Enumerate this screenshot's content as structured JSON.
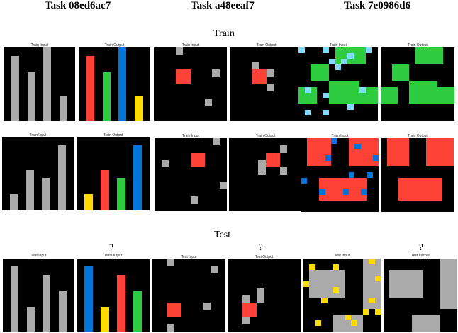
{
  "colors": {
    "background": "#000000",
    "gray": "#AAAAAA",
    "red": "#FF4136",
    "green": "#2ECC40",
    "blue": "#0074D9",
    "yellow": "#FFDC00",
    "lightblue": "#7FDBFF"
  },
  "tasks": [
    {
      "title": "Task 08ed6ac7"
    },
    {
      "title": "Task  a48eeaf7"
    },
    {
      "title": "Task 7e0986d6"
    }
  ],
  "sections": {
    "train": "Train",
    "test": "Test"
  },
  "labels": {
    "train_input": "Train Input",
    "train_output": "Train Output",
    "test_input": "Test Input",
    "test_output": "Test Output"
  },
  "unknown_mark": "?",
  "grids": [
    {
      "id": "t1-r1-in",
      "size": 9,
      "cells": [
        [
          1,
          1,
          1,
          8,
          "gray"
        ],
        [
          3,
          3,
          1,
          6,
          "gray"
        ],
        [
          5,
          0,
          1,
          9,
          "gray"
        ],
        [
          7,
          6,
          1,
          3,
          "gray"
        ]
      ]
    },
    {
      "id": "t1-r1-out",
      "size": 9,
      "cells": [
        [
          1,
          1,
          1,
          8,
          "red"
        ],
        [
          3,
          3,
          1,
          6,
          "green"
        ],
        [
          5,
          0,
          1,
          9,
          "blue"
        ],
        [
          7,
          6,
          1,
          3,
          "yellow"
        ]
      ]
    },
    {
      "id": "t1-r2-in",
      "size": 9,
      "cells": [
        [
          1,
          7,
          1,
          2,
          "gray"
        ],
        [
          3,
          4,
          1,
          5,
          "gray"
        ],
        [
          5,
          5,
          1,
          4,
          "gray"
        ],
        [
          7,
          1,
          1,
          8,
          "gray"
        ]
      ]
    },
    {
      "id": "t1-r2-out",
      "size": 9,
      "cells": [
        [
          1,
          7,
          1,
          2,
          "yellow"
        ],
        [
          3,
          4,
          1,
          5,
          "red"
        ],
        [
          5,
          5,
          1,
          4,
          "green"
        ],
        [
          7,
          1,
          1,
          8,
          "blue"
        ]
      ]
    },
    {
      "id": "t1-test-in",
      "size": 9,
      "cells": [
        [
          1,
          1,
          1,
          8,
          "gray"
        ],
        [
          3,
          6,
          1,
          3,
          "gray"
        ],
        [
          5,
          2,
          1,
          7,
          "gray"
        ],
        [
          7,
          4,
          1,
          5,
          "gray"
        ]
      ]
    },
    {
      "id": "t1-test-out",
      "size": 9,
      "cells": [
        [
          1,
          1,
          1,
          8,
          "blue"
        ],
        [
          3,
          6,
          1,
          3,
          "yellow"
        ],
        [
          5,
          2,
          1,
          7,
          "red"
        ],
        [
          7,
          4,
          1,
          5,
          "green"
        ]
      ]
    },
    {
      "id": "t2-r1-in",
      "size": 10,
      "cells": [
        [
          3,
          3,
          2,
          2,
          "red"
        ],
        [
          3,
          0,
          1,
          1,
          "gray"
        ],
        [
          8,
          3,
          1,
          1,
          "gray"
        ],
        [
          7,
          7,
          1,
          1,
          "gray"
        ]
      ]
    },
    {
      "id": "t2-r1-out",
      "size": 10,
      "cells": [
        [
          3,
          3,
          2,
          2,
          "red"
        ],
        [
          3,
          2,
          1,
          1,
          "gray"
        ],
        [
          5,
          3,
          1,
          1,
          "gray"
        ],
        [
          5,
          5,
          1,
          1,
          "gray"
        ]
      ]
    },
    {
      "id": "t2-r2-in",
      "size": 10,
      "cells": [
        [
          5,
          2,
          2,
          2,
          "red"
        ],
        [
          8,
          0,
          1,
          1,
          "gray"
        ],
        [
          1,
          3,
          1,
          1,
          "gray"
        ],
        [
          9,
          6,
          1,
          1,
          "gray"
        ],
        [
          5,
          8,
          1,
          1,
          "gray"
        ]
      ]
    },
    {
      "id": "t2-r2-out",
      "size": 10,
      "cells": [
        [
          5,
          2,
          2,
          2,
          "red"
        ],
        [
          7,
          1,
          1,
          1,
          "gray"
        ],
        [
          4,
          3,
          1,
          1,
          "gray"
        ],
        [
          4,
          4,
          1,
          1,
          "gray"
        ],
        [
          7,
          4,
          1,
          1,
          "gray"
        ]
      ]
    },
    {
      "id": "t2-test-in",
      "size": 10,
      "cells": [
        [
          2,
          6,
          2,
          2,
          "red"
        ],
        [
          2,
          0,
          1,
          1,
          "gray"
        ],
        [
          8,
          1,
          1,
          1,
          "gray"
        ],
        [
          7,
          6,
          1,
          1,
          "gray"
        ],
        [
          2,
          9,
          1,
          1,
          "gray"
        ]
      ]
    },
    {
      "id": "t2-test-out",
      "size": 10,
      "cells": [
        [
          2,
          6,
          2,
          2,
          "red"
        ],
        [
          2,
          5,
          1,
          1,
          "gray"
        ],
        [
          4,
          5,
          1,
          1,
          "gray"
        ],
        [
          4,
          4,
          1,
          1,
          "gray"
        ],
        [
          2,
          8,
          1,
          1,
          "gray"
        ]
      ]
    },
    {
      "id": "t3-r1-in",
      "size": 13,
      "cells": [
        [
          6,
          0,
          5,
          3,
          "green"
        ],
        [
          2,
          3,
          3,
          3,
          "green"
        ],
        [
          0,
          7,
          3,
          3,
          "green"
        ],
        [
          5,
          6,
          5,
          4,
          "green"
        ],
        [
          9,
          7,
          4,
          3,
          "green"
        ],
        [
          0,
          0,
          1,
          1,
          "lightblue"
        ],
        [
          4,
          0,
          1,
          1,
          "lightblue"
        ],
        [
          11,
          0,
          1,
          1,
          "lightblue"
        ],
        [
          7,
          2,
          1,
          1,
          "lightblue"
        ],
        [
          5,
          2,
          1,
          1,
          "lightblue"
        ],
        [
          8,
          1,
          1,
          1,
          "lightblue"
        ],
        [
          1,
          7,
          1,
          1,
          "lightblue"
        ],
        [
          4,
          8,
          1,
          1,
          "lightblue"
        ],
        [
          10,
          7,
          1,
          1,
          "lightblue"
        ],
        [
          8,
          10,
          1,
          1,
          "lightblue"
        ],
        [
          1,
          11,
          1,
          1,
          "lightblue"
        ],
        [
          4,
          11,
          1,
          1,
          "lightblue"
        ],
        [
          6,
          3,
          1,
          1,
          "lightblue"
        ]
      ]
    },
    {
      "id": "t3-r1-out",
      "size": 13,
      "cells": [
        [
          6,
          0,
          5,
          3,
          "green"
        ],
        [
          2,
          3,
          3,
          3,
          "green"
        ],
        [
          0,
          7,
          3,
          3,
          "green"
        ],
        [
          5,
          6,
          5,
          4,
          "green"
        ],
        [
          9,
          7,
          4,
          3,
          "green"
        ]
      ]
    },
    {
      "id": "t3-r2-in",
      "size": 13,
      "cells": [
        [
          1,
          0,
          4,
          5,
          "red"
        ],
        [
          8,
          0,
          5,
          5,
          "red"
        ],
        [
          3,
          7,
          8,
          4,
          "red"
        ],
        [
          5,
          0,
          1,
          1,
          "blue"
        ],
        [
          9,
          1,
          1,
          1,
          "blue"
        ],
        [
          4,
          3,
          1,
          1,
          "blue"
        ],
        [
          12,
          3,
          1,
          1,
          "blue"
        ],
        [
          0,
          7,
          1,
          1,
          "blue"
        ],
        [
          8,
          6,
          1,
          1,
          "blue"
        ],
        [
          11,
          6,
          1,
          1,
          "blue"
        ],
        [
          13,
          7,
          1,
          1,
          "blue"
        ],
        [
          3,
          9,
          1,
          1,
          "blue"
        ],
        [
          7,
          9,
          1,
          1,
          "blue"
        ],
        [
          10,
          9,
          1,
          1,
          "blue"
        ]
      ]
    },
    {
      "id": "t3-r2-out",
      "size": 13,
      "cells": [
        [
          1,
          0,
          4,
          5,
          "red"
        ],
        [
          8,
          0,
          5,
          5,
          "red"
        ],
        [
          3,
          7,
          8,
          4,
          "red"
        ]
      ]
    },
    {
      "id": "t3-test-in",
      "size": 13,
      "cells": [
        [
          1,
          2,
          6,
          5,
          "gray"
        ],
        [
          10,
          0,
          3,
          9,
          "gray"
        ],
        [
          5,
          10,
          5,
          3,
          "gray"
        ],
        [
          1,
          1,
          1,
          1,
          "yellow"
        ],
        [
          5,
          1,
          1,
          1,
          "yellow"
        ],
        [
          11,
          0,
          1,
          1,
          "yellow"
        ],
        [
          0,
          4,
          1,
          1,
          "yellow"
        ],
        [
          5,
          5,
          1,
          1,
          "yellow"
        ],
        [
          3,
          7,
          1,
          1,
          "yellow"
        ],
        [
          12,
          3,
          1,
          1,
          "yellow"
        ],
        [
          11,
          7,
          1,
          1,
          "yellow"
        ],
        [
          10,
          9,
          1,
          1,
          "yellow"
        ],
        [
          2,
          11,
          1,
          1,
          "yellow"
        ],
        [
          7,
          10,
          1,
          1,
          "yellow"
        ],
        [
          8,
          11,
          1,
          1,
          "yellow"
        ],
        [
          12,
          9,
          1,
          1,
          "yellow"
        ]
      ]
    },
    {
      "id": "t3-test-out",
      "size": 13,
      "cells": [
        [
          1,
          2,
          6,
          5,
          "gray"
        ],
        [
          10,
          0,
          3,
          9,
          "gray"
        ],
        [
          5,
          10,
          5,
          3,
          "gray"
        ]
      ]
    }
  ]
}
